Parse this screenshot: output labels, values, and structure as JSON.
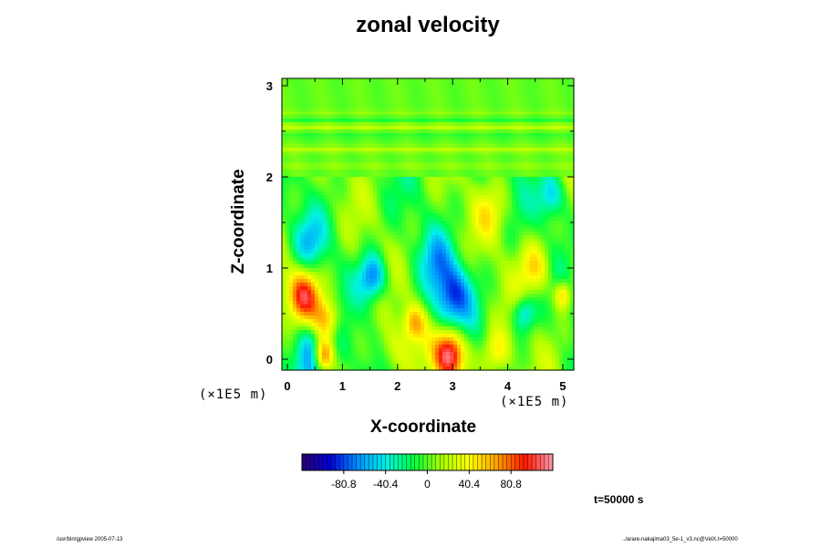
{
  "chart_data": {
    "type": "heatmap",
    "title": "zonal velocity",
    "xlabel": "X-coordinate",
    "ylabel": "Z-coordinate",
    "x_units": "(×1E5 m)",
    "z_units": "(×1E5 m)",
    "xlim": [
      -0.1,
      5.2
    ],
    "ylim": [
      -0.12,
      3.08
    ],
    "x_ticks": [
      0,
      1,
      2,
      3,
      4,
      5
    ],
    "x_tick_labels": [
      "0",
      "1",
      "2",
      "3",
      "4",
      "5"
    ],
    "y_ticks": [
      0,
      1,
      2,
      3
    ],
    "y_tick_labels": [
      "0",
      "1",
      "2",
      "3"
    ],
    "colorbar": {
      "min": -121.2,
      "max": 121.2,
      "ticks": [
        -80.8,
        -40.4,
        0,
        40.4,
        80.8
      ],
      "tick_labels": [
        "-80.8",
        "-40.4",
        "0",
        "40.4",
        "80.8"
      ],
      "colors": [
        "#2a0070",
        "#0000d8",
        "#0090ff",
        "#00f0e8",
        "#00ff40",
        "#a8ff00",
        "#ffff00",
        "#ffa000",
        "#ff1800",
        "#ff9ab0"
      ]
    },
    "field_features": [
      {
        "x": 0.65,
        "z": 0.03,
        "value": 130,
        "r": 0.2
      },
      {
        "x": 2.95,
        "z": 0.05,
        "value": 125,
        "r": 0.28
      },
      {
        "x": 0.3,
        "z": 0.7,
        "value": 95,
        "r": 0.3
      },
      {
        "x": 0.7,
        "z": 0.4,
        "value": 85,
        "r": 0.25
      },
      {
        "x": 0.5,
        "z": 0.05,
        "value": -95,
        "r": 0.4
      },
      {
        "x": 1.55,
        "z": 0.9,
        "value": -75,
        "r": 0.25
      },
      {
        "x": 3.0,
        "z": 0.7,
        "value": -80,
        "r": 0.35
      },
      {
        "x": 2.7,
        "z": 1.1,
        "value": -40,
        "r": 0.3
      },
      {
        "x": 4.3,
        "z": 0.5,
        "value": -55,
        "r": 0.2
      },
      {
        "x": 4.8,
        "z": 1.8,
        "value": -55,
        "r": 0.25
      },
      {
        "x": 0.4,
        "z": 1.3,
        "value": -40,
        "r": 0.3
      },
      {
        "x": 2.3,
        "z": 0.4,
        "value": 55,
        "r": 0.2
      },
      {
        "x": 4.5,
        "z": 1.0,
        "value": 50,
        "r": 0.3
      },
      {
        "x": 3.8,
        "z": 0.05,
        "value": 45,
        "r": 0.25
      },
      {
        "x": 1.9,
        "z": 0.1,
        "value": 30,
        "r": 0.3
      },
      {
        "x": 3.7,
        "z": 1.6,
        "value": 30,
        "r": 0.3
      },
      {
        "x": 5.0,
        "z": 0.7,
        "value": 60,
        "r": 0.15
      }
    ],
    "upper_layer_bands": [
      {
        "z": 2.12,
        "value": 8
      },
      {
        "z": 2.3,
        "value": 15
      },
      {
        "z": 2.45,
        "value": -8
      },
      {
        "z": 2.55,
        "value": 18
      },
      {
        "z": 2.62,
        "value": -10
      },
      {
        "z": 2.7,
        "value": 6
      }
    ],
    "upper_layer_bottom": 2.0,
    "time": "t=50000 s"
  },
  "footer": {
    "left": "/usr/bin/gpview 2005-07-13",
    "right": "../arare-nakajima03_5e-1_v3.nc@VelX,t=50000"
  }
}
